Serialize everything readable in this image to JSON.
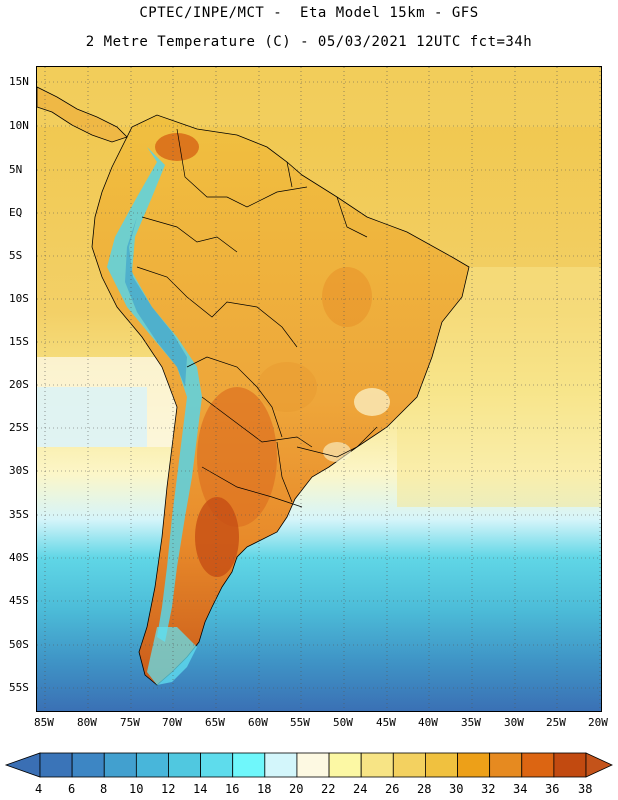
{
  "header": {
    "line1": "CPTEC/INPE/MCT -  Eta Model 15km - GFS",
    "line2": "2 Metre Temperature (C) - 05/03/2021 12UTC fct=34h"
  },
  "map": {
    "region": "South America",
    "lat_labels": [
      "15N",
      "10N",
      "5N",
      "EQ",
      "5S",
      "10S",
      "15S",
      "20S",
      "25S",
      "30S",
      "35S",
      "40S",
      "45S",
      "50S",
      "55S"
    ],
    "lon_labels": [
      "85W",
      "80W",
      "75W",
      "70W",
      "65W",
      "60W",
      "55W",
      "50W",
      "45W",
      "40W",
      "35W",
      "30W",
      "25W",
      "20W"
    ]
  },
  "colorbar": {
    "labels": [
      "4",
      "6",
      "8",
      "10",
      "12",
      "14",
      "16",
      "18",
      "20",
      "22",
      "24",
      "26",
      "28",
      "30",
      "32",
      "34",
      "36",
      "38"
    ],
    "low_color": "#3a6fb4",
    "high_color": "#c4531a",
    "colors": [
      "#3a74b8",
      "#3d86c4",
      "#42a0cf",
      "#48b6da",
      "#50c8e0",
      "#5edcec",
      "#6ff7fb",
      "#d3f6fb",
      "#fdf9e2",
      "#fcf8a4",
      "#f7e485",
      "#f3d160",
      "#f0c13f",
      "#eda018",
      "#e68a20",
      "#dc6512",
      "#c24a10"
    ]
  }
}
